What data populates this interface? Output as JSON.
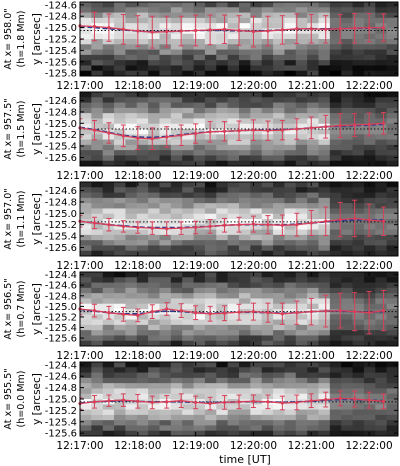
{
  "chart_data": {
    "type": "line",
    "xlabel": "time [UT]",
    "x_tick_labels": [
      "12:17:00",
      "12:18:00",
      "12:19:00",
      "12:20:00",
      "12:21:00",
      "12:22:00"
    ],
    "x_ticks_seconds_of_day": [
      44220,
      44280,
      44340,
      44400,
      44460,
      44520
    ],
    "xlim_seconds_of_day": [
      44220,
      44550
    ],
    "time_samples": [
      "12:17:00",
      "12:17:15",
      "12:17:30",
      "12:17:45",
      "12:18:00",
      "12:18:15",
      "12:18:30",
      "12:18:45",
      "12:19:00",
      "12:19:15",
      "12:19:30",
      "12:19:45",
      "12:20:00",
      "12:20:15",
      "12:20:30",
      "12:20:45",
      "12:21:00",
      "12:21:15",
      "12:21:30",
      "12:21:45",
      "12:22:00",
      "12:22:15"
    ],
    "panels": [
      {
        "panel_label": "At x= 958.0\"",
        "height_label": "(h=1.8 Mm)",
        "ylabel": "y [arcsec]",
        "ylim": [
          -125.85,
          -124.55
        ],
        "y_ticks": [
          -124.6,
          -124.8,
          -125.0,
          -125.2,
          -125.4,
          -125.6,
          -125.8
        ],
        "dotted_ref": -125.05,
        "measured": [
          -124.97,
          -124.98,
          -125.0,
          -125.03,
          -125.06,
          -125.08,
          -125.07,
          -125.06,
          -125.05,
          -125.04,
          -125.03,
          -125.05,
          -125.07,
          -125.06,
          -125.04,
          -125.02,
          -125.02,
          -125.03,
          -125.02,
          -125.01,
          -125.0,
          -125.0
        ],
        "fit": [
          -124.98,
          -125.0,
          -125.02,
          -125.04,
          -125.06,
          -125.07,
          -125.07,
          -125.06,
          -125.05,
          -125.05,
          -125.05,
          -125.06,
          -125.06,
          -125.05,
          -125.04,
          -125.03,
          -125.02,
          -125.02,
          -125.02,
          -125.01,
          -125.01,
          -125.0
        ],
        "error": [
          0.24,
          0.25,
          0.24,
          0.26,
          0.27,
          0.28,
          0.27,
          0.26,
          0.27,
          0.26,
          0.25,
          0.26,
          0.27,
          0.26,
          0.25,
          0.26,
          0.25,
          0.24,
          0.25,
          0.26,
          0.25,
          0.24
        ]
      },
      {
        "panel_label": "At x= 957.5\"",
        "height_label": "(h=1.5 Mm)",
        "ylabel": "y [arcsec]",
        "ylim": [
          -125.75,
          -124.45
        ],
        "y_ticks": [
          -124.6,
          -124.8,
          -125.0,
          -125.2,
          -125.4,
          -125.6
        ],
        "dotted_ref": -125.1,
        "measured": [
          -125.08,
          -125.12,
          -125.17,
          -125.22,
          -125.26,
          -125.27,
          -125.24,
          -125.21,
          -125.18,
          -125.15,
          -125.14,
          -125.13,
          -125.12,
          -125.13,
          -125.12,
          -125.1,
          -125.08,
          -125.06,
          -125.04,
          -125.03,
          -125.02,
          -125.0
        ],
        "fit": [
          -125.07,
          -125.11,
          -125.16,
          -125.21,
          -125.24,
          -125.25,
          -125.23,
          -125.2,
          -125.17,
          -125.15,
          -125.14,
          -125.13,
          -125.12,
          -125.12,
          -125.11,
          -125.1,
          -125.08,
          -125.06,
          -125.05,
          -125.04,
          -125.03,
          -125.02
        ],
        "error": [
          0.16,
          0.17,
          0.18,
          0.19,
          0.2,
          0.19,
          0.18,
          0.18,
          0.17,
          0.18,
          0.17,
          0.17,
          0.18,
          0.17,
          0.17,
          0.18,
          0.19,
          0.2,
          0.21,
          0.2,
          0.2,
          0.19
        ]
      },
      {
        "panel_label": "At x= 957.0\"",
        "height_label": "(h=1.1 Mm)",
        "ylabel": "y [arcsec]",
        "ylim": [
          -125.75,
          -124.45
        ],
        "y_ticks": [
          -124.6,
          -124.8,
          -125.0,
          -125.2,
          -125.4,
          -125.6
        ],
        "dotted_ref": -125.15,
        "measured": [
          -125.14,
          -125.17,
          -125.2,
          -125.23,
          -125.25,
          -125.26,
          -125.27,
          -125.26,
          -125.25,
          -125.23,
          -125.21,
          -125.2,
          -125.19,
          -125.2,
          -125.21,
          -125.2,
          -125.17,
          -125.14,
          -125.11,
          -125.09,
          -125.12,
          -125.14
        ],
        "fit": [
          -125.14,
          -125.17,
          -125.2,
          -125.22,
          -125.24,
          -125.25,
          -125.25,
          -125.25,
          -125.24,
          -125.23,
          -125.21,
          -125.2,
          -125.2,
          -125.2,
          -125.2,
          -125.19,
          -125.17,
          -125.15,
          -125.13,
          -125.12,
          -125.12,
          -125.12
        ],
        "error": [
          0.1,
          0.1,
          0.11,
          0.1,
          0.1,
          0.11,
          0.12,
          0.11,
          0.11,
          0.12,
          0.12,
          0.13,
          0.14,
          0.16,
          0.18,
          0.2,
          0.22,
          0.25,
          0.3,
          0.32,
          0.28,
          0.25
        ]
      },
      {
        "panel_label": "At x= 956.5\"",
        "height_label": "(h=0.7 Mm)",
        "ylabel": "y [arcsec]",
        "ylim": [
          -125.75,
          -124.35
        ],
        "y_ticks": [
          -124.4,
          -124.6,
          -124.8,
          -125.0,
          -125.2,
          -125.4,
          -125.6
        ],
        "dotted_ref": -125.1,
        "measured": [
          -125.05,
          -125.08,
          -125.12,
          -125.15,
          -125.17,
          -125.1,
          -125.05,
          -125.08,
          -125.12,
          -125.14,
          -125.13,
          -125.11,
          -125.1,
          -125.12,
          -125.14,
          -125.12,
          -125.1,
          -125.09,
          -125.08,
          -125.1,
          -125.12,
          -125.08
        ],
        "fit": [
          -125.06,
          -125.09,
          -125.12,
          -125.14,
          -125.14,
          -125.11,
          -125.09,
          -125.1,
          -125.12,
          -125.13,
          -125.12,
          -125.11,
          -125.11,
          -125.12,
          -125.13,
          -125.12,
          -125.1,
          -125.09,
          -125.09,
          -125.1,
          -125.11,
          -125.1
        ],
        "error": [
          0.11,
          0.12,
          0.12,
          0.13,
          0.12,
          0.13,
          0.12,
          0.13,
          0.13,
          0.14,
          0.14,
          0.15,
          0.16,
          0.18,
          0.2,
          0.22,
          0.25,
          0.3,
          0.33,
          0.36,
          0.4,
          0.38
        ]
      },
      {
        "panel_label": "At x= 955.5\"",
        "height_label": "(h=0.0 Mm)",
        "ylabel": "y [arcsec]",
        "ylim": [
          -125.65,
          -124.35
        ],
        "y_ticks": [
          -124.4,
          -124.6,
          -124.8,
          -125.0,
          -125.2,
          -125.4,
          -125.6
        ],
        "dotted_ref": -125.05,
        "measured": [
          -125.08,
          -125.05,
          -125.03,
          -125.02,
          -125.04,
          -125.06,
          -125.05,
          -125.03,
          -125.06,
          -125.08,
          -125.06,
          -125.05,
          -125.04,
          -125.05,
          -125.07,
          -125.06,
          -125.03,
          -125.01,
          -124.99,
          -125.0,
          -125.02,
          -125.04
        ],
        "fit": [
          -125.07,
          -125.05,
          -125.04,
          -125.03,
          -125.04,
          -125.05,
          -125.05,
          -125.05,
          -125.06,
          -125.06,
          -125.06,
          -125.05,
          -125.05,
          -125.05,
          -125.06,
          -125.05,
          -125.04,
          -125.02,
          -125.01,
          -125.01,
          -125.02,
          -125.03
        ],
        "error": [
          0.1,
          0.11,
          0.1,
          0.11,
          0.12,
          0.11,
          0.11,
          0.12,
          0.11,
          0.11,
          0.12,
          0.12,
          0.11,
          0.12,
          0.12,
          0.13,
          0.12,
          0.13,
          0.13,
          0.14,
          0.14,
          0.13
        ]
      }
    ],
    "colors": {
      "measured": "#d8405a",
      "error_bars": "#d8405a",
      "fit": "#2a3a8c",
      "dotted_ref": "#101010",
      "background_colormap": "grayscale"
    },
    "grid": false
  }
}
